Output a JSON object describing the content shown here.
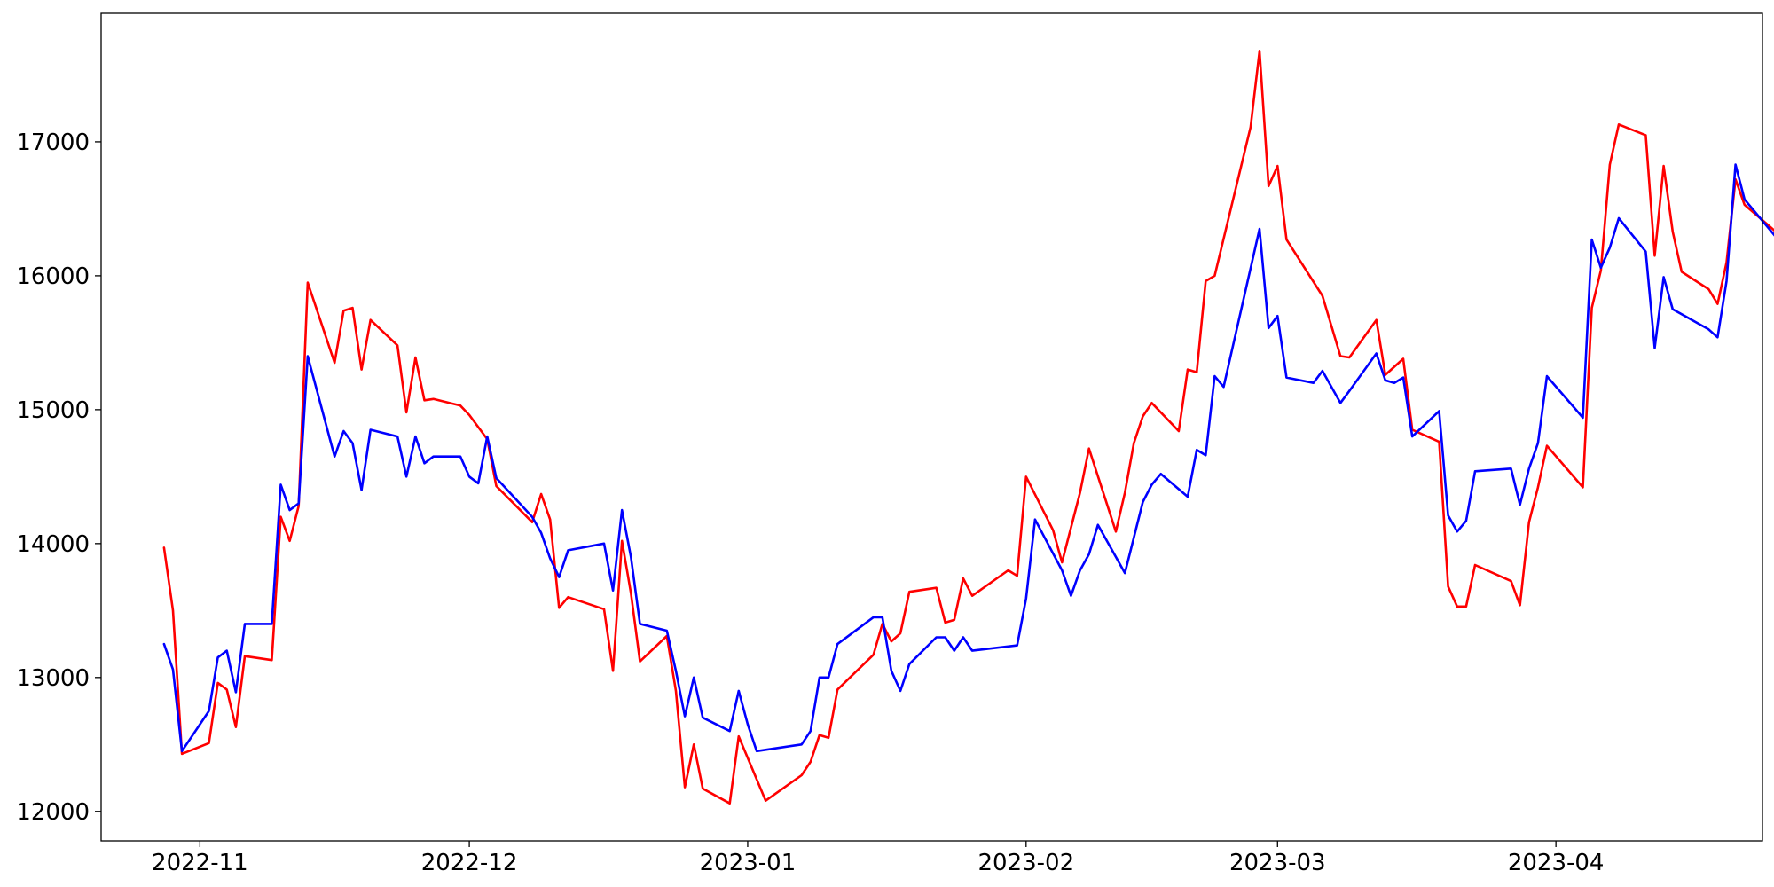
{
  "chart_data": {
    "type": "line",
    "title": "",
    "xlabel": "",
    "ylabel": "",
    "grid": false,
    "xlim": [
      "2022-10-21",
      "2023-04-24"
    ],
    "ylim": [
      11780,
      17960
    ],
    "xticks": [
      {
        "date": "2022-11-01",
        "label": "2022-11"
      },
      {
        "date": "2022-12-01",
        "label": "2022-12"
      },
      {
        "date": "2023-01-01",
        "label": "2023-01"
      },
      {
        "date": "2023-02-01",
        "label": "2023-02"
      },
      {
        "date": "2023-03-01",
        "label": "2023-03"
      },
      {
        "date": "2023-04-01",
        "label": "2023-04"
      }
    ],
    "yticks": [
      {
        "value": 12000,
        "label": "12000"
      },
      {
        "value": 13000,
        "label": "13000"
      },
      {
        "value": 14000,
        "label": "14000"
      },
      {
        "value": 15000,
        "label": "15000"
      },
      {
        "value": 16000,
        "label": "16000"
      },
      {
        "value": 17000,
        "label": "17000"
      }
    ],
    "series": [
      {
        "color": "#ff0000",
        "points": [
          [
            "2022-10-28",
            13970
          ],
          [
            "2022-10-29",
            13500
          ],
          [
            "2022-10-30",
            12430
          ],
          [
            "2022-11-02",
            12510
          ],
          [
            "2022-11-03",
            12960
          ],
          [
            "2022-11-04",
            12910
          ],
          [
            "2022-11-05",
            12630
          ],
          [
            "2022-11-06",
            13160
          ],
          [
            "2022-11-09",
            13130
          ],
          [
            "2022-11-10",
            14200
          ],
          [
            "2022-11-11",
            14020
          ],
          [
            "2022-11-12",
            14280
          ],
          [
            "2022-11-13",
            15950
          ],
          [
            "2022-11-16",
            15350
          ],
          [
            "2022-11-17",
            15740
          ],
          [
            "2022-11-18",
            15760
          ],
          [
            "2022-11-19",
            15300
          ],
          [
            "2022-11-20",
            15670
          ],
          [
            "2022-11-23",
            15480
          ],
          [
            "2022-11-24",
            14980
          ],
          [
            "2022-11-25",
            15390
          ],
          [
            "2022-11-26",
            15070
          ],
          [
            "2022-11-27",
            15080
          ],
          [
            "2022-11-30",
            15030
          ],
          [
            "2022-12-01",
            14960
          ],
          [
            "2022-12-03",
            14780
          ],
          [
            "2022-12-04",
            14430
          ],
          [
            "2022-12-08",
            14160
          ],
          [
            "2022-12-09",
            14370
          ],
          [
            "2022-12-10",
            14180
          ],
          [
            "2022-12-11",
            13520
          ],
          [
            "2022-12-12",
            13600
          ],
          [
            "2022-12-16",
            13510
          ],
          [
            "2022-12-17",
            13050
          ],
          [
            "2022-12-18",
            14020
          ],
          [
            "2022-12-19",
            13630
          ],
          [
            "2022-12-20",
            13120
          ],
          [
            "2022-12-23",
            13310
          ],
          [
            "2022-12-24",
            12900
          ],
          [
            "2022-12-25",
            12180
          ],
          [
            "2022-12-26",
            12500
          ],
          [
            "2022-12-27",
            12170
          ],
          [
            "2022-12-30",
            12060
          ],
          [
            "2022-12-31",
            12560
          ],
          [
            "2023-01-03",
            12080
          ],
          [
            "2023-01-07",
            12270
          ],
          [
            "2023-01-08",
            12370
          ],
          [
            "2023-01-09",
            12570
          ],
          [
            "2023-01-10",
            12550
          ],
          [
            "2023-01-11",
            12910
          ],
          [
            "2023-01-15",
            13170
          ],
          [
            "2023-01-16",
            13400
          ],
          [
            "2023-01-17",
            13270
          ],
          [
            "2023-01-18",
            13330
          ],
          [
            "2023-01-19",
            13640
          ],
          [
            "2023-01-22",
            13670
          ],
          [
            "2023-01-23",
            13410
          ],
          [
            "2023-01-24",
            13430
          ],
          [
            "2023-01-25",
            13740
          ],
          [
            "2023-01-26",
            13610
          ],
          [
            "2023-01-30",
            13800
          ],
          [
            "2023-01-31",
            13760
          ],
          [
            "2023-02-01",
            14500
          ],
          [
            "2023-02-04",
            14100
          ],
          [
            "2023-02-05",
            13860
          ],
          [
            "2023-02-07",
            14380
          ],
          [
            "2023-02-08",
            14710
          ],
          [
            "2023-02-11",
            14090
          ],
          [
            "2023-02-12",
            14380
          ],
          [
            "2023-02-13",
            14750
          ],
          [
            "2023-02-14",
            14950
          ],
          [
            "2023-02-15",
            15050
          ],
          [
            "2023-02-18",
            14840
          ],
          [
            "2023-02-19",
            15300
          ],
          [
            "2023-02-20",
            15280
          ],
          [
            "2023-02-21",
            15960
          ],
          [
            "2023-02-22",
            16000
          ],
          [
            "2023-02-26",
            17110
          ],
          [
            "2023-02-27",
            17680
          ],
          [
            "2023-02-28",
            16670
          ],
          [
            "2023-03-01",
            16820
          ],
          [
            "2023-03-02",
            16270
          ],
          [
            "2023-03-06",
            15850
          ],
          [
            "2023-03-08",
            15400
          ],
          [
            "2023-03-09",
            15390
          ],
          [
            "2023-03-12",
            15670
          ],
          [
            "2023-03-13",
            15260
          ],
          [
            "2023-03-15",
            15380
          ],
          [
            "2023-03-16",
            14850
          ],
          [
            "2023-03-19",
            14760
          ],
          [
            "2023-03-20",
            13680
          ],
          [
            "2023-03-21",
            13530
          ],
          [
            "2023-03-22",
            13530
          ],
          [
            "2023-03-23",
            13840
          ],
          [
            "2023-03-27",
            13720
          ],
          [
            "2023-03-28",
            13540
          ],
          [
            "2023-03-29",
            14160
          ],
          [
            "2023-03-30",
            14420
          ],
          [
            "2023-03-31",
            14730
          ],
          [
            "2023-04-04",
            14420
          ],
          [
            "2023-04-05",
            15760
          ],
          [
            "2023-04-06",
            16040
          ],
          [
            "2023-04-07",
            16830
          ],
          [
            "2023-04-08",
            17130
          ],
          [
            "2023-04-11",
            17050
          ],
          [
            "2023-04-12",
            16150
          ],
          [
            "2023-04-13",
            16820
          ],
          [
            "2023-04-14",
            16330
          ],
          [
            "2023-04-15",
            16030
          ],
          [
            "2023-04-18",
            15900
          ],
          [
            "2023-04-19",
            15790
          ],
          [
            "2023-04-20",
            16100
          ],
          [
            "2023-04-21",
            16720
          ],
          [
            "2023-04-22",
            16530
          ],
          [
            "2023-04-26",
            16300
          ]
        ]
      },
      {
        "color": "#0000ff",
        "points": [
          [
            "2022-10-28",
            13250
          ],
          [
            "2022-10-29",
            13060
          ],
          [
            "2022-10-30",
            12450
          ],
          [
            "2022-11-02",
            12750
          ],
          [
            "2022-11-03",
            13150
          ],
          [
            "2022-11-04",
            13200
          ],
          [
            "2022-11-05",
            12890
          ],
          [
            "2022-11-06",
            13400
          ],
          [
            "2022-11-09",
            13400
          ],
          [
            "2022-11-10",
            14440
          ],
          [
            "2022-11-11",
            14250
          ],
          [
            "2022-11-12",
            14300
          ],
          [
            "2022-11-13",
            15400
          ],
          [
            "2022-11-16",
            14650
          ],
          [
            "2022-11-17",
            14840
          ],
          [
            "2022-11-18",
            14750
          ],
          [
            "2022-11-19",
            14400
          ],
          [
            "2022-11-20",
            14850
          ],
          [
            "2022-11-23",
            14800
          ],
          [
            "2022-11-24",
            14500
          ],
          [
            "2022-11-25",
            14800
          ],
          [
            "2022-11-26",
            14600
          ],
          [
            "2022-11-27",
            14650
          ],
          [
            "2022-11-30",
            14650
          ],
          [
            "2022-12-01",
            14500
          ],
          [
            "2022-12-02",
            14450
          ],
          [
            "2022-12-03",
            14800
          ],
          [
            "2022-12-04",
            14490
          ],
          [
            "2022-12-08",
            14200
          ],
          [
            "2022-12-09",
            14080
          ],
          [
            "2022-12-10",
            13890
          ],
          [
            "2022-12-11",
            13750
          ],
          [
            "2022-12-12",
            13950
          ],
          [
            "2022-12-16",
            14000
          ],
          [
            "2022-12-17",
            13650
          ],
          [
            "2022-12-18",
            14250
          ],
          [
            "2022-12-19",
            13900
          ],
          [
            "2022-12-20",
            13400
          ],
          [
            "2022-12-23",
            13350
          ],
          [
            "2022-12-24",
            13050
          ],
          [
            "2022-12-25",
            12710
          ],
          [
            "2022-12-26",
            13000
          ],
          [
            "2022-12-27",
            12700
          ],
          [
            "2022-12-30",
            12600
          ],
          [
            "2022-12-31",
            12900
          ],
          [
            "2023-01-01",
            12650
          ],
          [
            "2023-01-02",
            12450
          ],
          [
            "2023-01-07",
            12500
          ],
          [
            "2023-01-08",
            12600
          ],
          [
            "2023-01-09",
            13000
          ],
          [
            "2023-01-10",
            13000
          ],
          [
            "2023-01-11",
            13250
          ],
          [
            "2023-01-15",
            13450
          ],
          [
            "2023-01-16",
            13450
          ],
          [
            "2023-01-17",
            13050
          ],
          [
            "2023-01-18",
            12900
          ],
          [
            "2023-01-19",
            13100
          ],
          [
            "2023-01-22",
            13300
          ],
          [
            "2023-01-23",
            13300
          ],
          [
            "2023-01-24",
            13200
          ],
          [
            "2023-01-25",
            13300
          ],
          [
            "2023-01-26",
            13200
          ],
          [
            "2023-01-31",
            13240
          ],
          [
            "2023-02-01",
            13590
          ],
          [
            "2023-02-02",
            14180
          ],
          [
            "2023-02-05",
            13800
          ],
          [
            "2023-02-06",
            13610
          ],
          [
            "2023-02-07",
            13800
          ],
          [
            "2023-02-08",
            13920
          ],
          [
            "2023-02-09",
            14140
          ],
          [
            "2023-02-12",
            13780
          ],
          [
            "2023-02-14",
            14310
          ],
          [
            "2023-02-15",
            14440
          ],
          [
            "2023-02-16",
            14520
          ],
          [
            "2023-02-19",
            14350
          ],
          [
            "2023-02-20",
            14700
          ],
          [
            "2023-02-21",
            14660
          ],
          [
            "2023-02-22",
            15250
          ],
          [
            "2023-02-23",
            15170
          ],
          [
            "2023-02-27",
            16350
          ],
          [
            "2023-02-28",
            15610
          ],
          [
            "2023-03-01",
            15700
          ],
          [
            "2023-03-02",
            15240
          ],
          [
            "2023-03-05",
            15200
          ],
          [
            "2023-03-06",
            15290
          ],
          [
            "2023-03-08",
            15050
          ],
          [
            "2023-03-09",
            15140
          ],
          [
            "2023-03-12",
            15420
          ],
          [
            "2023-03-13",
            15220
          ],
          [
            "2023-03-14",
            15200
          ],
          [
            "2023-03-15",
            15240
          ],
          [
            "2023-03-16",
            14800
          ],
          [
            "2023-03-19",
            14990
          ],
          [
            "2023-03-20",
            14210
          ],
          [
            "2023-03-21",
            14090
          ],
          [
            "2023-03-22",
            14170
          ],
          [
            "2023-03-23",
            14540
          ],
          [
            "2023-03-27",
            14560
          ],
          [
            "2023-03-28",
            14290
          ],
          [
            "2023-03-29",
            14560
          ],
          [
            "2023-03-30",
            14750
          ],
          [
            "2023-03-31",
            15250
          ],
          [
            "2023-04-04",
            14940
          ],
          [
            "2023-04-05",
            16270
          ],
          [
            "2023-04-06",
            16060
          ],
          [
            "2023-04-07",
            16210
          ],
          [
            "2023-04-08",
            16430
          ],
          [
            "2023-04-11",
            16180
          ],
          [
            "2023-04-12",
            15460
          ],
          [
            "2023-04-13",
            15990
          ],
          [
            "2023-04-14",
            15750
          ],
          [
            "2023-04-18",
            15600
          ],
          [
            "2023-04-19",
            15540
          ],
          [
            "2023-04-20",
            15960
          ],
          [
            "2023-04-21",
            16830
          ],
          [
            "2023-04-22",
            16570
          ],
          [
            "2023-04-26",
            16250
          ]
        ]
      }
    ]
  }
}
